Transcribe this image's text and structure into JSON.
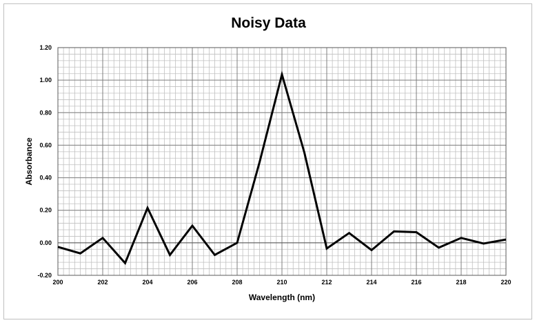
{
  "chart_data": {
    "type": "line",
    "title": "Noisy Data",
    "xlabel": "Wavelength (nm)",
    "ylabel": "Absorbance",
    "xlim": [
      200,
      220
    ],
    "ylim": [
      -0.2,
      1.2
    ],
    "x_ticks": [
      "200",
      "202",
      "204",
      "206",
      "208",
      "210",
      "212",
      "214",
      "216",
      "218",
      "220"
    ],
    "y_ticks": [
      "-0.20",
      "0.00",
      "0.20",
      "0.40",
      "0.60",
      "0.80",
      "1.00",
      "1.20"
    ],
    "grid": true,
    "legend": "none",
    "series": [
      {
        "color": "#000000",
        "x": [
          200,
          201,
          202,
          203,
          204,
          205,
          206,
          207,
          208,
          209,
          210,
          211,
          212,
          213,
          214,
          215,
          216,
          217,
          218,
          219,
          220
        ],
        "y": [
          -0.025,
          -0.065,
          0.03,
          -0.125,
          0.215,
          -0.075,
          0.105,
          -0.075,
          0.0,
          0.495,
          1.035,
          0.555,
          -0.035,
          0.06,
          -0.045,
          0.07,
          0.065,
          -0.03,
          0.03,
          -0.005,
          0.02
        ]
      }
    ]
  }
}
